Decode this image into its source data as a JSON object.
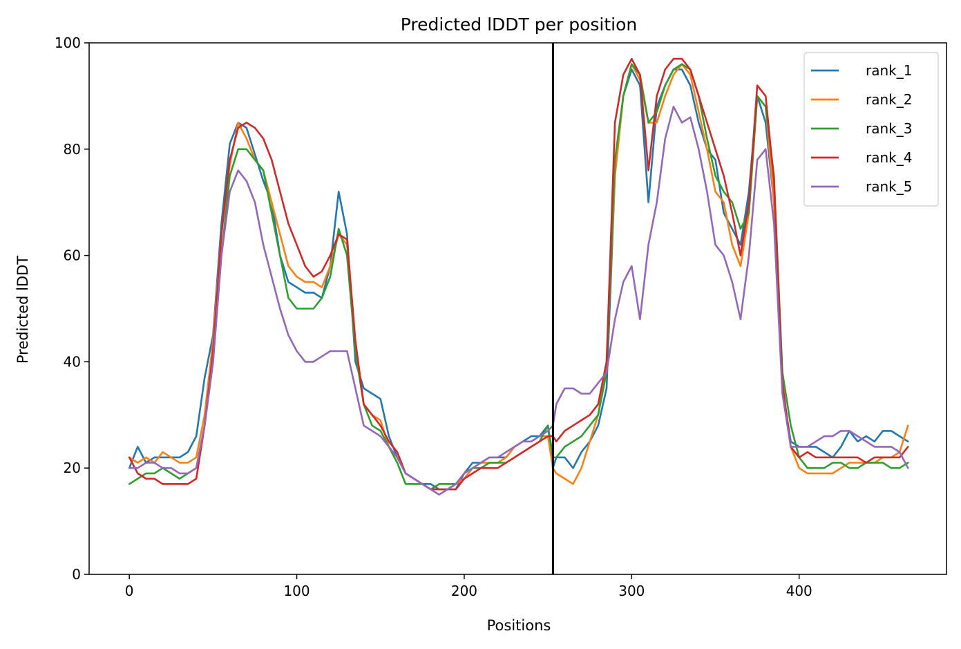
{
  "chart_data": {
    "type": "line",
    "title": "Predicted lDDT per position",
    "xlabel": "Positions",
    "ylabel": "Predicted lDDT",
    "xlim": [
      -24,
      488
    ],
    "ylim": [
      0,
      100
    ],
    "xticks": [
      0,
      100,
      200,
      300,
      400
    ],
    "yticks": [
      0,
      20,
      40,
      60,
      80,
      100
    ],
    "grid": false,
    "legend_position": "top-right",
    "vline_x": 253,
    "vline_color": "#000000",
    "series": [
      {
        "name": "rank_1",
        "color": "#1f77b4",
        "x": [
          0,
          5,
          10,
          15,
          20,
          25,
          30,
          35,
          40,
          45,
          50,
          55,
          60,
          65,
          70,
          75,
          80,
          85,
          90,
          95,
          100,
          105,
          110,
          115,
          120,
          125,
          130,
          135,
          140,
          145,
          150,
          155,
          160,
          165,
          170,
          175,
          180,
          185,
          190,
          195,
          200,
          205,
          210,
          215,
          220,
          225,
          230,
          235,
          240,
          245,
          250,
          253,
          255,
          260,
          265,
          270,
          275,
          280,
          285,
          290,
          295,
          300,
          305,
          310,
          315,
          320,
          325,
          330,
          335,
          340,
          345,
          350,
          355,
          360,
          365,
          370,
          375,
          380,
          385,
          390,
          395,
          400,
          405,
          410,
          415,
          420,
          425,
          430,
          435,
          440,
          445,
          450,
          455,
          460,
          465
        ],
        "values": [
          20,
          24,
          21,
          22,
          22,
          22,
          22,
          23,
          26,
          37,
          45,
          66,
          81,
          85,
          84,
          79,
          74,
          70,
          60,
          55,
          54,
          53,
          53,
          52,
          58,
          72,
          64,
          40,
          35,
          34,
          33,
          26,
          22,
          19,
          18,
          17,
          17,
          16,
          16,
          16,
          19,
          21,
          21,
          22,
          22,
          22,
          24,
          25,
          26,
          26,
          28,
          20,
          22,
          22,
          20,
          23,
          25,
          28,
          35,
          75,
          90,
          95,
          92,
          70,
          88,
          92,
          95,
          95,
          92,
          85,
          80,
          78,
          68,
          65,
          62,
          72,
          90,
          85,
          70,
          35,
          25,
          24,
          24,
          24,
          23,
          22,
          24,
          27,
          25,
          26,
          25,
          27,
          27,
          26,
          25
        ]
      },
      {
        "name": "rank_2",
        "color": "#ff7f0e",
        "x": [
          0,
          5,
          10,
          15,
          20,
          25,
          30,
          35,
          40,
          45,
          50,
          55,
          60,
          65,
          70,
          75,
          80,
          85,
          90,
          95,
          100,
          105,
          110,
          115,
          120,
          125,
          130,
          135,
          140,
          145,
          150,
          155,
          160,
          165,
          170,
          175,
          180,
          185,
          190,
          195,
          200,
          205,
          210,
          215,
          220,
          225,
          230,
          235,
          240,
          245,
          250,
          253,
          255,
          260,
          265,
          270,
          275,
          280,
          285,
          290,
          295,
          300,
          305,
          310,
          315,
          320,
          325,
          330,
          335,
          340,
          345,
          350,
          355,
          360,
          365,
          370,
          375,
          380,
          385,
          390,
          395,
          400,
          405,
          410,
          415,
          420,
          425,
          430,
          435,
          440,
          445,
          450,
          455,
          460,
          465
        ],
        "values": [
          22,
          21,
          22,
          21,
          23,
          22,
          21,
          21,
          22,
          30,
          44,
          64,
          77,
          85,
          82,
          78,
          76,
          70,
          64,
          58,
          56,
          55,
          55,
          54,
          58,
          64,
          62,
          42,
          32,
          30,
          29,
          24,
          22,
          19,
          18,
          17,
          16,
          16,
          16,
          17,
          18,
          20,
          21,
          21,
          21,
          22,
          24,
          25,
          25,
          26,
          26,
          20,
          19,
          18,
          17,
          20,
          25,
          30,
          40,
          75,
          90,
          96,
          93,
          85,
          85,
          90,
          94,
          96,
          94,
          87,
          80,
          72,
          70,
          62,
          58,
          68,
          90,
          88,
          70,
          36,
          24,
          20,
          19,
          19,
          19,
          19,
          20,
          21,
          21,
          21,
          21,
          22,
          22,
          23,
          28
        ]
      },
      {
        "name": "rank_3",
        "color": "#2ca02c",
        "x": [
          0,
          5,
          10,
          15,
          20,
          25,
          30,
          35,
          40,
          45,
          50,
          55,
          60,
          65,
          70,
          75,
          80,
          85,
          90,
          95,
          100,
          105,
          110,
          115,
          120,
          125,
          130,
          135,
          140,
          145,
          150,
          155,
          160,
          165,
          170,
          175,
          180,
          185,
          190,
          195,
          200,
          205,
          210,
          215,
          220,
          225,
          230,
          235,
          240,
          245,
          250,
          253,
          255,
          260,
          265,
          270,
          275,
          280,
          285,
          290,
          295,
          300,
          305,
          310,
          315,
          320,
          325,
          330,
          335,
          340,
          345,
          350,
          355,
          360,
          365,
          370,
          375,
          380,
          385,
          390,
          395,
          400,
          405,
          410,
          415,
          420,
          425,
          430,
          435,
          440,
          445,
          450,
          455,
          460,
          465
        ],
        "values": [
          17,
          18,
          19,
          19,
          20,
          19,
          18,
          19,
          20,
          28,
          40,
          60,
          75,
          80,
          80,
          78,
          76,
          68,
          60,
          52,
          50,
          50,
          50,
          52,
          56,
          65,
          60,
          42,
          32,
          28,
          27,
          24,
          21,
          17,
          17,
          17,
          16,
          17,
          17,
          17,
          19,
          20,
          20,
          21,
          21,
          21,
          22,
          23,
          24,
          25,
          28,
          22,
          22,
          24,
          25,
          26,
          28,
          30,
          38,
          78,
          90,
          96,
          94,
          85,
          87,
          92,
          95,
          96,
          95,
          90,
          82,
          75,
          72,
          70,
          65,
          68,
          90,
          88,
          75,
          38,
          28,
          22,
          20,
          20,
          20,
          21,
          21,
          20,
          20,
          21,
          21,
          21,
          20,
          20,
          21
        ]
      },
      {
        "name": "rank_4",
        "color": "#d62728",
        "x": [
          0,
          5,
          10,
          15,
          20,
          25,
          30,
          35,
          40,
          45,
          50,
          55,
          60,
          65,
          70,
          75,
          80,
          85,
          90,
          95,
          100,
          105,
          110,
          115,
          120,
          125,
          130,
          135,
          140,
          145,
          150,
          155,
          160,
          165,
          170,
          175,
          180,
          185,
          190,
          195,
          200,
          205,
          210,
          215,
          220,
          225,
          230,
          235,
          240,
          245,
          250,
          253,
          255,
          260,
          265,
          270,
          275,
          280,
          285,
          290,
          295,
          300,
          305,
          310,
          315,
          320,
          325,
          330,
          335,
          340,
          345,
          350,
          355,
          360,
          365,
          370,
          375,
          380,
          385,
          390,
          395,
          400,
          405,
          410,
          415,
          420,
          425,
          430,
          435,
          440,
          445,
          450,
          455,
          460,
          465
        ],
        "values": [
          22,
          19,
          18,
          18,
          17,
          17,
          17,
          17,
          18,
          28,
          42,
          64,
          78,
          84,
          85,
          84,
          82,
          78,
          72,
          66,
          62,
          58,
          56,
          57,
          60,
          64,
          63,
          44,
          32,
          30,
          28,
          25,
          23,
          19,
          18,
          17,
          16,
          16,
          16,
          16,
          18,
          19,
          20,
          20,
          20,
          21,
          22,
          23,
          24,
          25,
          26,
          26,
          25,
          27,
          28,
          29,
          30,
          32,
          40,
          85,
          94,
          97,
          94,
          76,
          90,
          95,
          97,
          97,
          95,
          90,
          85,
          80,
          75,
          68,
          60,
          70,
          92,
          90,
          74,
          36,
          24,
          22,
          23,
          22,
          22,
          22,
          22,
          22,
          22,
          21,
          22,
          22,
          22,
          22,
          24
        ]
      },
      {
        "name": "rank_5",
        "color": "#9467bd",
        "x": [
          0,
          5,
          10,
          15,
          20,
          25,
          30,
          35,
          40,
          45,
          50,
          55,
          60,
          65,
          70,
          75,
          80,
          85,
          90,
          95,
          100,
          105,
          110,
          115,
          120,
          125,
          130,
          135,
          140,
          145,
          150,
          155,
          160,
          165,
          170,
          175,
          180,
          185,
          190,
          195,
          200,
          205,
          210,
          215,
          220,
          225,
          230,
          235,
          240,
          245,
          250,
          253,
          255,
          260,
          265,
          270,
          275,
          280,
          285,
          290,
          295,
          300,
          305,
          310,
          315,
          320,
          325,
          330,
          335,
          340,
          345,
          350,
          355,
          360,
          365,
          370,
          375,
          380,
          385,
          390,
          395,
          400,
          405,
          410,
          415,
          420,
          425,
          430,
          435,
          440,
          445,
          450,
          455,
          460,
          465
        ],
        "values": [
          20,
          20,
          21,
          21,
          20,
          20,
          19,
          19,
          20,
          28,
          40,
          60,
          72,
          76,
          74,
          70,
          62,
          56,
          50,
          45,
          42,
          40,
          40,
          41,
          42,
          42,
          42,
          35,
          28,
          27,
          26,
          24,
          22,
          19,
          18,
          17,
          16,
          15,
          16,
          17,
          19,
          20,
          21,
          22,
          22,
          23,
          24,
          25,
          25,
          26,
          27,
          28,
          32,
          35,
          35,
          34,
          34,
          36,
          38,
          48,
          55,
          58,
          48,
          62,
          70,
          82,
          88,
          85,
          86,
          80,
          72,
          62,
          60,
          55,
          48,
          60,
          78,
          80,
          66,
          34,
          24,
          24,
          24,
          25,
          26,
          26,
          27,
          27,
          26,
          25,
          24,
          24,
          24,
          23,
          20
        ]
      }
    ]
  }
}
